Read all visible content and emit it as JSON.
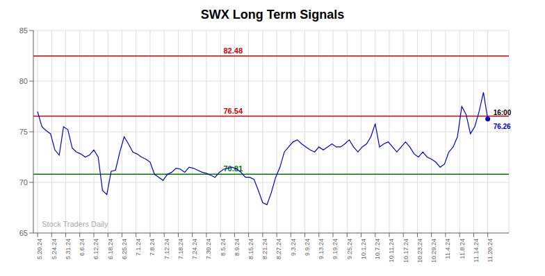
{
  "chart_data": {
    "type": "line",
    "title": "SWX Long Term Signals",
    "color": "#0000CC",
    "grid": true,
    "x": [
      0,
      1,
      2,
      3,
      4,
      5,
      6,
      7,
      8,
      9,
      10,
      11,
      12,
      13,
      14,
      15,
      16,
      17,
      18,
      19,
      20,
      21,
      22,
      23,
      24,
      25,
      26,
      27,
      28,
      29,
      30,
      31,
      32,
      33,
      34,
      35,
      36,
      37,
      38,
      39,
      40,
      41,
      42,
      43,
      44,
      45,
      46,
      47,
      48,
      49,
      50,
      51,
      52,
      53,
      54,
      55,
      56,
      57,
      58,
      59,
      60,
      61,
      62,
      63,
      64,
      65,
      66,
      67,
      68,
      69,
      70,
      71,
      72,
      73,
      74,
      75,
      76,
      77,
      78,
      79,
      80,
      81,
      82,
      83,
      84,
      85,
      86,
      87,
      88,
      89,
      90,
      91,
      92,
      93,
      94,
      95,
      96,
      97,
      98,
      99,
      100,
      101,
      102,
      103,
      104
    ],
    "values": [
      77.0,
      75.5,
      75.1,
      74.8,
      73.2,
      72.7,
      75.5,
      75.2,
      73.4,
      73.0,
      72.8,
      72.5,
      72.7,
      73.2,
      72.5,
      69.2,
      68.8,
      71.1,
      71.2,
      73.0,
      74.5,
      73.8,
      73.0,
      72.8,
      72.5,
      72.3,
      72.0,
      70.8,
      70.5,
      70.2,
      70.8,
      71.0,
      71.4,
      71.3,
      71.0,
      71.5,
      71.4,
      71.2,
      71.0,
      70.9,
      70.7,
      70.5,
      71.0,
      71.3,
      71.4,
      71.5,
      71.3,
      71.0,
      70.5,
      70.5,
      70.3,
      69.2,
      68.0,
      67.8,
      69.0,
      70.5,
      71.5,
      73.0,
      73.5,
      74.0,
      74.2,
      73.8,
      73.5,
      73.2,
      73.0,
      73.5,
      73.2,
      73.5,
      73.8,
      73.5,
      73.5,
      73.8,
      74.2,
      73.5,
      73.0,
      73.5,
      73.8,
      74.5,
      75.8,
      73.5,
      73.8,
      74.0,
      73.5,
      73.0,
      73.5,
      74.0,
      73.5,
      72.8,
      72.5,
      73.0,
      72.5,
      72.3,
      72.0,
      71.5,
      71.8,
      73.0,
      73.5,
      74.5,
      77.5,
      76.7,
      74.8,
      75.5,
      77.0,
      78.9,
      76.26
    ],
    "xlim": [
      -0.975,
      108.875
    ],
    "xticks": [
      {
        "value": 0,
        "label": "5.20.24"
      },
      {
        "value": 3.25,
        "label": "5.24.24"
      },
      {
        "value": 6.5,
        "label": "5.31.24"
      },
      {
        "value": 9.75,
        "label": "6.6.24"
      },
      {
        "value": 13,
        "label": "6.12.24"
      },
      {
        "value": 16.25,
        "label": "6.18.24"
      },
      {
        "value": 19.5,
        "label": "6.25.24"
      },
      {
        "value": 22.75,
        "label": "7.1.24"
      },
      {
        "value": 26,
        "label": "7.8.24"
      },
      {
        "value": 29.25,
        "label": "7.12.24"
      },
      {
        "value": 32.5,
        "label": "7.18.24"
      },
      {
        "value": 35.75,
        "label": "7.24.24"
      },
      {
        "value": 39,
        "label": "7.30.24"
      },
      {
        "value": 42.25,
        "label": "8.5.24"
      },
      {
        "value": 45.5,
        "label": "8.9.24"
      },
      {
        "value": 48.75,
        "label": "8.15.24"
      },
      {
        "value": 52,
        "label": "8.21.24"
      },
      {
        "value": 55.25,
        "label": "8.27.24"
      },
      {
        "value": 58.5,
        "label": "9.3.24"
      },
      {
        "value": 61.75,
        "label": "9.9.24"
      },
      {
        "value": 65,
        "label": "9.13.24"
      },
      {
        "value": 68.25,
        "label": "9.19.24"
      },
      {
        "value": 71.5,
        "label": "9.25.24"
      },
      {
        "value": 74.75,
        "label": "10.1.24"
      },
      {
        "value": 78,
        "label": "10.7.24"
      },
      {
        "value": 81.25,
        "label": "10.11.24"
      },
      {
        "value": 84.5,
        "label": "10.17.24"
      },
      {
        "value": 87.75,
        "label": "10.23.24"
      },
      {
        "value": 91,
        "label": "10.29.24"
      },
      {
        "value": 94.25,
        "label": "11.4.24"
      },
      {
        "value": 97.5,
        "label": "11.8.24"
      },
      {
        "value": 100.75,
        "label": "11.14.24"
      },
      {
        "value": 104,
        "label": "11.20.24"
      }
    ],
    "ylim": [
      65,
      85
    ],
    "yticks": [
      65,
      70,
      75,
      80,
      85
    ],
    "hlines": [
      {
        "value": 82.48,
        "label": "82.48",
        "color": "#CC0000"
      },
      {
        "value": 76.54,
        "label": "76.54",
        "color": "#CC0000"
      },
      {
        "value": 70.81,
        "label": "70.81",
        "color": "#007700"
      }
    ],
    "annotations": [
      {
        "text": "16:00",
        "x": 104,
        "y": 76.26
      },
      {
        "text": "76.26",
        "x": 104,
        "y": 76.26,
        "color": "#0000CC"
      },
      {
        "text": "Stock Traders Daily",
        "x": 0.975,
        "y": 65.4
      }
    ]
  }
}
